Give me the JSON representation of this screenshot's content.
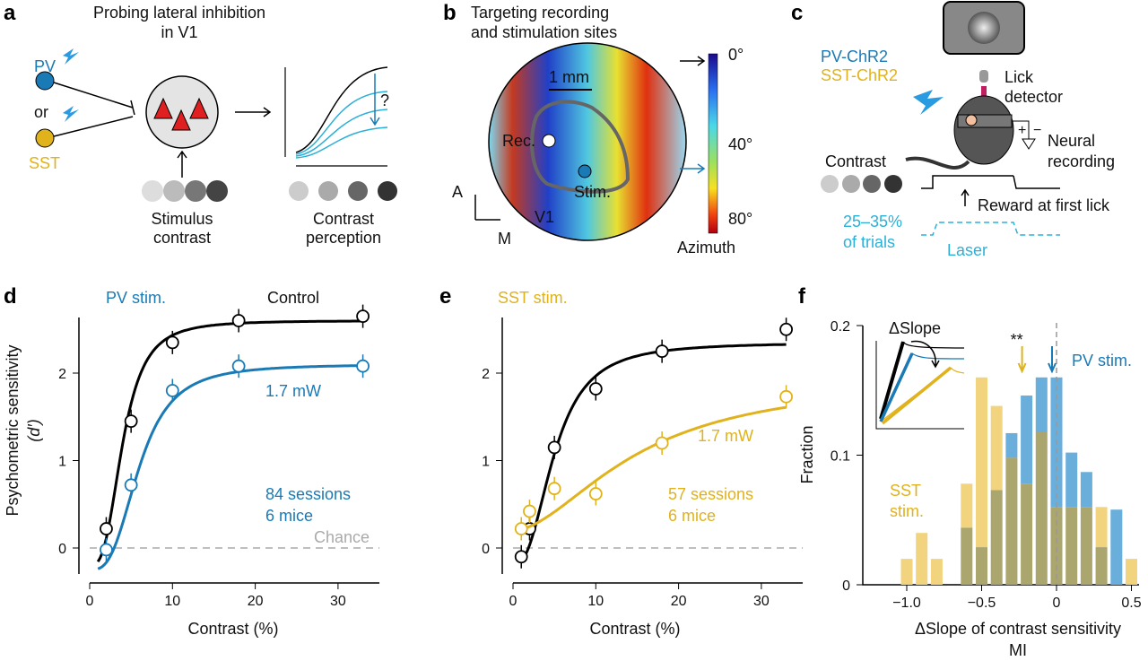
{
  "colors": {
    "pv": "#1a7ab5",
    "sst": "#e0b21c",
    "control": "#000000",
    "laser": "#2bb0d8",
    "pv_bar": "#6aaedc",
    "sst_bar": "#f2d47e",
    "overlap_bar": "#aba56e",
    "chance": "#aaaaaa"
  },
  "panel_a": {
    "label": "a",
    "title1": "Probing lateral inhibition",
    "title2": "in V1",
    "pv": "PV",
    "or": "or",
    "sst": "SST",
    "stim1": "Stimulus",
    "stim2": "contrast",
    "perc1": "Contrast",
    "perc2": "perception",
    "question": "?"
  },
  "panel_b": {
    "label": "b",
    "title1": "Targeting recording",
    "title2": "and stimulation sites",
    "scale": "1 mm",
    "rec": "Rec.",
    "stim": "Stim.",
    "v1": "V1",
    "axis_a": "A",
    "axis_m": "M",
    "cbar_ticks": [
      "0°",
      "40°",
      "80°"
    ],
    "cbar_label": "Azimuth"
  },
  "panel_c": {
    "label": "c",
    "pv": "PV-ChR2",
    "sst": "SST-ChR2",
    "lick1": "Lick",
    "lick2": "detector",
    "neural1": "Neural",
    "neural2": "recording",
    "contrast": "Contrast",
    "reward": "Reward at first lick",
    "trials1": "25–35%",
    "trials2": "of trials",
    "laser": "Laser",
    "plus": "+",
    "minus": "−"
  },
  "chart_data": [
    {
      "panel": "d",
      "type": "line",
      "xlabel": "Contrast (%)",
      "ylabel": "Psychometric sensitivity",
      "ylabel2": "(d′)",
      "xlim": [
        0,
        35
      ],
      "ylim": [
        -0.3,
        2.8
      ],
      "xticks": [
        "0",
        "10",
        "20",
        "30"
      ],
      "yticks": [
        "0",
        "1",
        "2"
      ],
      "series": [
        {
          "name": "Control",
          "x": [
            2,
            5,
            10,
            18,
            33
          ],
          "y": [
            0.22,
            1.45,
            2.35,
            2.6,
            2.65
          ]
        },
        {
          "name": "PV stim.",
          "x": [
            2,
            5,
            10,
            18,
            33
          ],
          "y": [
            -0.02,
            0.72,
            1.8,
            2.08,
            2.08
          ]
        }
      ],
      "annotations": {
        "power": "1.7 mW",
        "sessions": "84 sessions",
        "mice": "6 mice",
        "chance": "Chance"
      }
    },
    {
      "panel": "e",
      "type": "line",
      "xlabel": "Contrast (%)",
      "xlim": [
        0,
        35
      ],
      "ylim": [
        -0.3,
        2.8
      ],
      "xticks": [
        "0",
        "10",
        "20",
        "30"
      ],
      "yticks": [
        "0",
        "1",
        "2"
      ],
      "series": [
        {
          "name": "Control",
          "x": [
            1,
            2,
            5,
            10,
            18,
            33
          ],
          "y": [
            -0.1,
            0.22,
            1.15,
            1.82,
            2.25,
            2.5
          ]
        },
        {
          "name": "SST stim.",
          "x": [
            1,
            2,
            5,
            10,
            18,
            33
          ],
          "y": [
            0.22,
            0.42,
            0.68,
            0.62,
            1.2,
            1.73
          ]
        }
      ],
      "annotations": {
        "power": "1.7 mW",
        "sessions": "57 sessions",
        "mice": "6 mice"
      }
    },
    {
      "panel": "f",
      "type": "bar",
      "xlabel": "ΔSlope of contrast sensitivity",
      "xlabel2": "MI",
      "ylabel": "Fraction",
      "xlim": [
        -1.1,
        0.55
      ],
      "ylim": [
        0,
        0.2
      ],
      "xticks": [
        "−1.0",
        "−0.5",
        "0",
        "0.5"
      ],
      "yticks": [
        "0",
        "0.1",
        "0.2"
      ],
      "categories": [
        -1.0,
        -0.9,
        -0.8,
        -0.7,
        -0.6,
        -0.5,
        -0.4,
        -0.3,
        -0.2,
        -0.1,
        0,
        0.1,
        0.2,
        0.3,
        0.4,
        0.5
      ],
      "series": [
        {
          "name": "SST stim.",
          "values": [
            0.02,
            0.04,
            0.02,
            0,
            0.078,
            0.16,
            0.138,
            0.098,
            0.078,
            0.118,
            0.06,
            0.06,
            0.06,
            0.06,
            0,
            0.02
          ],
          "median": -0.23
        },
        {
          "name": "PV stim.",
          "values": [
            0,
            0,
            0,
            0,
            0.044,
            0.029,
            0.073,
            0.117,
            0.146,
            0.16,
            0.16,
            0.102,
            0.087,
            0.029,
            0.058,
            0
          ],
          "median": -0.03
        }
      ],
      "annotations": {
        "significance": "**",
        "inset_title": "ΔSlope",
        "sst_label1": "SST",
        "sst_label2": "stim."
      }
    }
  ]
}
